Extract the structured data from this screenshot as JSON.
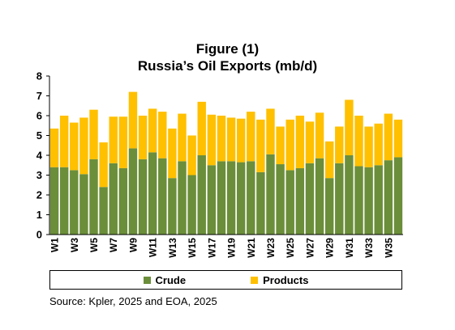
{
  "chart_data": {
    "type": "bar",
    "stacked": true,
    "title": "Figure (1)",
    "subtitle": "Russia’s Oil Exports (mb/d)",
    "ylim": [
      0,
      8
    ],
    "yticks": [
      0,
      1,
      2,
      3,
      4,
      5,
      6,
      7,
      8
    ],
    "grid": false,
    "legend_position": "bottom",
    "categories": [
      "W1",
      "W2",
      "W3",
      "W4",
      "W5",
      "W6",
      "W7",
      "W8",
      "W9",
      "W10",
      "W11",
      "W12",
      "W13",
      "W14",
      "W15",
      "W16",
      "W17",
      "W18",
      "W19",
      "W20",
      "W21",
      "W22",
      "W23",
      "W24",
      "W25",
      "W26",
      "W27",
      "W28",
      "W29",
      "W30",
      "W31",
      "W32",
      "W33",
      "W34",
      "W35",
      "W36"
    ],
    "tick_labels": [
      "W1",
      "W3",
      "W5",
      "W7",
      "W9",
      "W11",
      "W13",
      "W15",
      "W17",
      "W19",
      "W21",
      "W23",
      "W25",
      "W27",
      "W29",
      "W31",
      "W33",
      "W35"
    ],
    "series": [
      {
        "name": "Crude",
        "color": "#6b8e3a",
        "values": [
          3.4,
          3.4,
          3.25,
          3.05,
          3.8,
          2.4,
          3.6,
          3.35,
          4.35,
          3.8,
          4.15,
          3.85,
          2.85,
          3.7,
          3.0,
          4.0,
          3.5,
          3.7,
          3.7,
          3.65,
          3.7,
          3.15,
          4.05,
          3.55,
          3.25,
          3.35,
          3.6,
          3.85,
          2.85,
          3.6,
          4.0,
          3.45,
          3.4,
          3.5,
          3.75,
          3.9
        ]
      },
      {
        "name": "Products",
        "color": "#ffc000",
        "values": [
          1.95,
          2.6,
          2.4,
          2.85,
          2.5,
          2.25,
          2.35,
          2.6,
          2.85,
          2.2,
          2.2,
          2.35,
          2.5,
          2.4,
          2.0,
          2.7,
          2.55,
          2.3,
          2.2,
          2.2,
          2.5,
          2.65,
          2.3,
          1.9,
          2.55,
          2.65,
          2.1,
          2.3,
          1.85,
          1.85,
          2.8,
          2.55,
          2.05,
          2.1,
          2.35,
          1.9
        ]
      }
    ]
  },
  "legend": {
    "crude_label": "Crude",
    "products_label": "Products"
  },
  "source": "Source: Kpler, 2025 and EOA, 2025"
}
